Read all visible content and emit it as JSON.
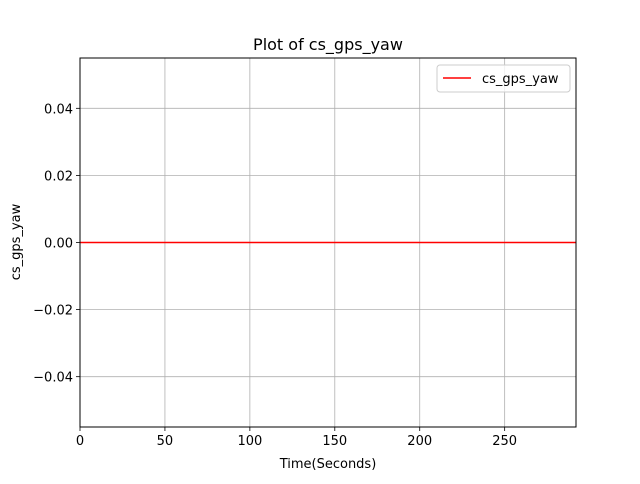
{
  "chart_data": {
    "type": "line",
    "title": "Plot of cs_gps_yaw",
    "xlabel": "Time(Seconds)",
    "ylabel": "cs_gps_yaw",
    "xlim": [
      0,
      292
    ],
    "ylim": [
      -0.055,
      0.055
    ],
    "xticks": [
      0,
      50,
      100,
      150,
      200,
      250
    ],
    "xtick_labels": [
      "0",
      "50",
      "100",
      "150",
      "200",
      "250"
    ],
    "yticks": [
      -0.04,
      -0.02,
      0.0,
      0.02,
      0.04
    ],
    "ytick_labels": [
      "−0.04",
      "−0.02",
      "0.00",
      "0.02",
      "0.04"
    ],
    "grid": true,
    "legend_position": "top-right",
    "series": [
      {
        "name": "cs_gps_yaw",
        "color": "#ff0000",
        "x": [
          0,
          292
        ],
        "y": [
          0.0,
          0.0
        ]
      }
    ]
  }
}
